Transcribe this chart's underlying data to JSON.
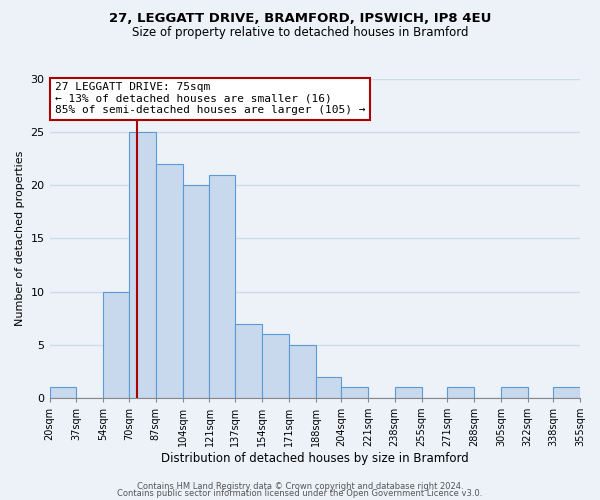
{
  "title_line1": "27, LEGGATT DRIVE, BRAMFORD, IPSWICH, IP8 4EU",
  "title_line2": "Size of property relative to detached houses in Bramford",
  "xlabel": "Distribution of detached houses by size in Bramford",
  "ylabel": "Number of detached properties",
  "bin_edges": [
    20,
    37,
    54,
    70,
    87,
    104,
    121,
    137,
    154,
    171,
    188,
    204,
    221,
    238,
    255,
    271,
    288,
    305,
    322,
    338,
    355
  ],
  "bin_labels": [
    "20sqm",
    "37sqm",
    "54sqm",
    "70sqm",
    "87sqm",
    "104sqm",
    "121sqm",
    "137sqm",
    "154sqm",
    "171sqm",
    "188sqm",
    "204sqm",
    "221sqm",
    "238sqm",
    "255sqm",
    "271sqm",
    "288sqm",
    "305sqm",
    "322sqm",
    "338sqm",
    "355sqm"
  ],
  "counts": [
    1,
    0,
    10,
    25,
    22,
    20,
    21,
    7,
    6,
    5,
    2,
    1,
    0,
    1,
    0,
    1,
    0,
    1,
    0,
    1
  ],
  "bar_color": "#c8d9ed",
  "bar_edge_color": "#5b9bd5",
  "property_value": 75,
  "vline_color": "#aa0000",
  "annotation_title": "27 LEGGATT DRIVE: 75sqm",
  "annotation_line2": "← 13% of detached houses are smaller (16)",
  "annotation_line3": "85% of semi-detached houses are larger (105) →",
  "annotation_box_edge_color": "#aa0000",
  "annotation_box_face_color": "#ffffff",
  "ylim": [
    0,
    30
  ],
  "yticks": [
    0,
    5,
    10,
    15,
    20,
    25,
    30
  ],
  "footer_line1": "Contains HM Land Registry data © Crown copyright and database right 2024.",
  "footer_line2": "Contains public sector information licensed under the Open Government Licence v3.0.",
  "background_color": "#edf2f9",
  "grid_color": "#d0daea",
  "title1_fontsize": 9.5,
  "title2_fontsize": 8.5,
  "ylabel_fontsize": 8,
  "xlabel_fontsize": 8.5,
  "tick_fontsize": 7,
  "annotation_fontsize": 8,
  "footer_fontsize": 6
}
